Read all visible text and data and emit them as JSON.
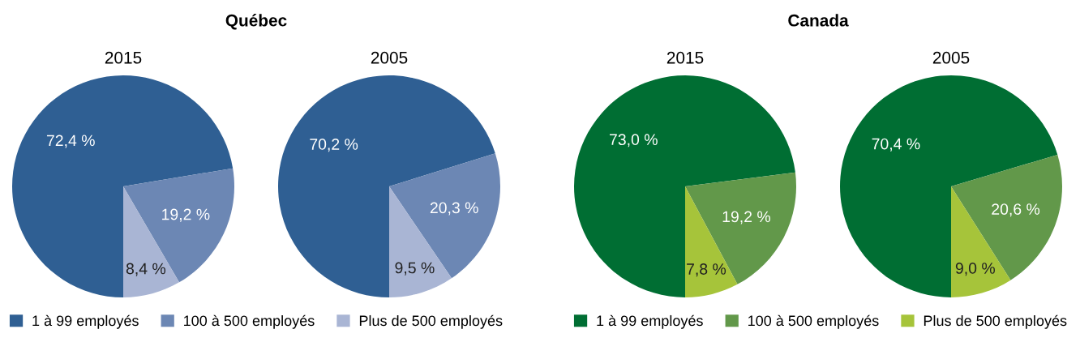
{
  "chart_data": [
    {
      "type": "pie",
      "title": "2015",
      "annotations": [
        "Québec"
      ],
      "legend": "bottom",
      "categories": [
        "1 à 99 employés",
        "100 à 500 employés",
        "Plus de 500 employés"
      ],
      "values": [
        72.4,
        19.2,
        8.4
      ],
      "value_labels": [
        "72,4 %",
        "19,2 %",
        "8,4 %"
      ],
      "colors": [
        "#2f5f93",
        "#6c87b4",
        "#a9b5d4"
      ]
    },
    {
      "type": "pie",
      "title": "2005",
      "categories": [
        null,
        null,
        null
      ],
      "values": [
        70.2,
        20.3,
        9.5
      ],
      "value_labels": [
        "70,2 %",
        "20,3 %",
        "9,5 %"
      ],
      "colors": [
        "#2f5f93",
        "#6c87b4",
        "#a9b5d4"
      ]
    },
    {
      "type": "pie",
      "title": "2015",
      "annotations": [
        "Canada"
      ],
      "legend": "bottom",
      "categories": [
        "1 à 99 employés",
        "100 à 500 employés",
        "Plus de 500 employés"
      ],
      "values": [
        73.0,
        19.2,
        7.8
      ],
      "value_labels": [
        "73,0 %",
        "19,2 %",
        "7,8 %"
      ],
      "colors": [
        "#006e33",
        "#62984a",
        "#a6c43a"
      ]
    },
    {
      "type": "pie",
      "title": "2005",
      "categories": [
        null,
        null,
        null
      ],
      "values": [
        70.4,
        20.6,
        9.0
      ],
      "value_labels": [
        "70,4 %",
        "20,6 %",
        "9,0 %"
      ],
      "colors": [
        "#006e33",
        "#62984a",
        "#a6c43a"
      ]
    }
  ]
}
